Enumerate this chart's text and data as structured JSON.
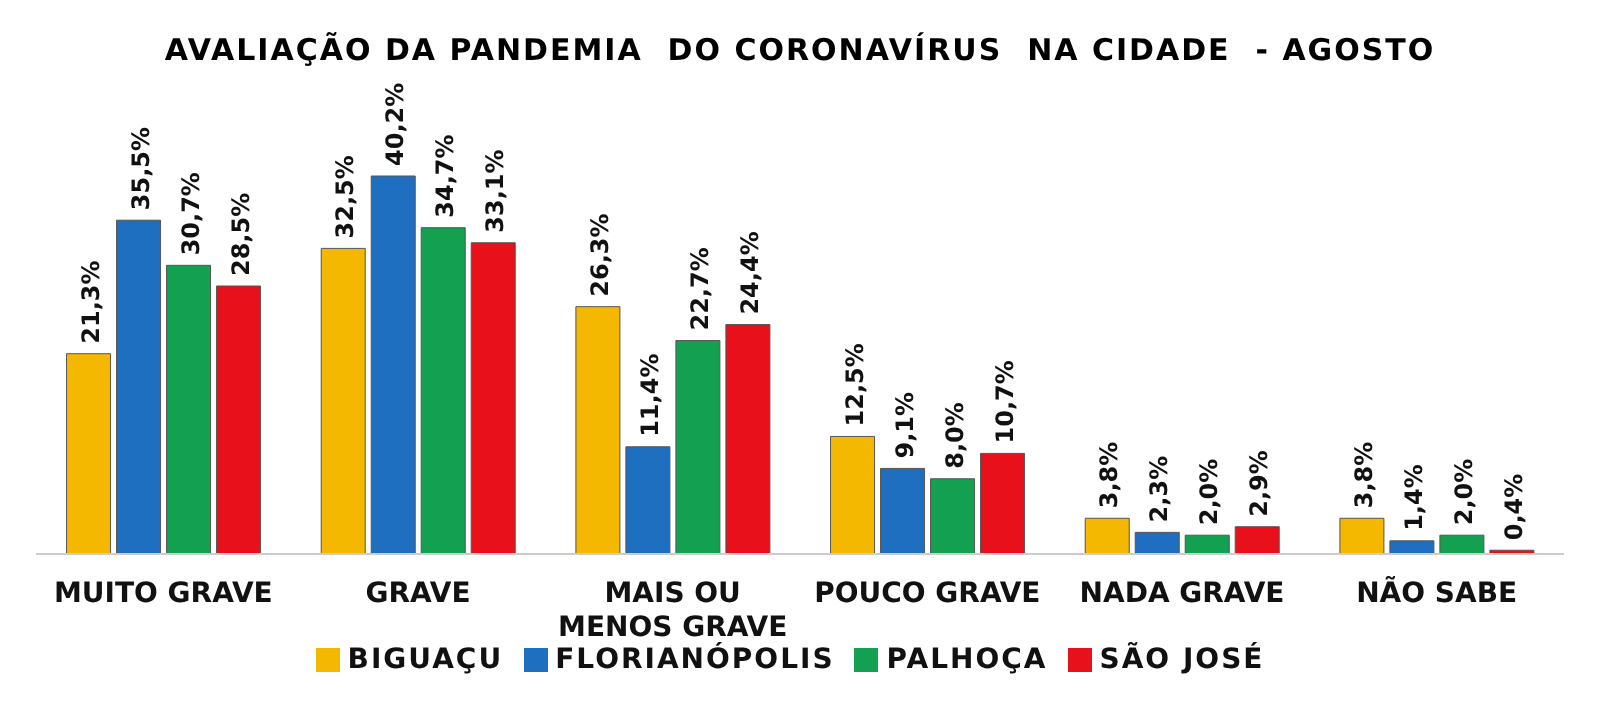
{
  "chart_data": {
    "type": "bar",
    "title": "AVALIAÇÃO DA PANDEMIA  DO CORONAVÍRUS  NA CIDADE  - AGOSTO",
    "categories": [
      "MUITO GRAVE",
      "GRAVE",
      "MAIS OU MENOS GRAVE",
      "POUCO GRAVE",
      "NADA GRAVE",
      "NÃO SABE"
    ],
    "series": [
      {
        "name": "BIGUAÇU",
        "color": "#f5b800",
        "values": [
          21.3,
          32.5,
          26.3,
          12.5,
          3.8,
          3.8
        ],
        "value_labels": [
          "21,3%",
          "32,5%",
          "26,3%",
          "12,5%",
          "3,8%",
          "3,8%"
        ]
      },
      {
        "name": "FLORIANÓPOLIS",
        "color": "#1f6fc0",
        "values": [
          35.5,
          40.2,
          11.4,
          9.1,
          2.3,
          1.4
        ],
        "value_labels": [
          "35,5%",
          "40,2%",
          "11,4%",
          "9,1%",
          "2,3%",
          "1,4%"
        ]
      },
      {
        "name": "PALHOÇA",
        "color": "#13a050",
        "values": [
          30.7,
          34.7,
          22.7,
          8.0,
          2.0,
          2.0
        ],
        "value_labels": [
          "30,7%",
          "34,7%",
          "22,7%",
          "8,0%",
          "2,0%",
          "2,0%"
        ]
      },
      {
        "name": "SÃO JOSÉ",
        "color": "#e8101a",
        "values": [
          28.5,
          33.1,
          24.4,
          10.7,
          2.9,
          0.4
        ],
        "value_labels": [
          "28,5%",
          "33,1%",
          "24,4%",
          "10,7%",
          "2,9%",
          "0,4%"
        ]
      }
    ],
    "legend": "bottom"
  }
}
